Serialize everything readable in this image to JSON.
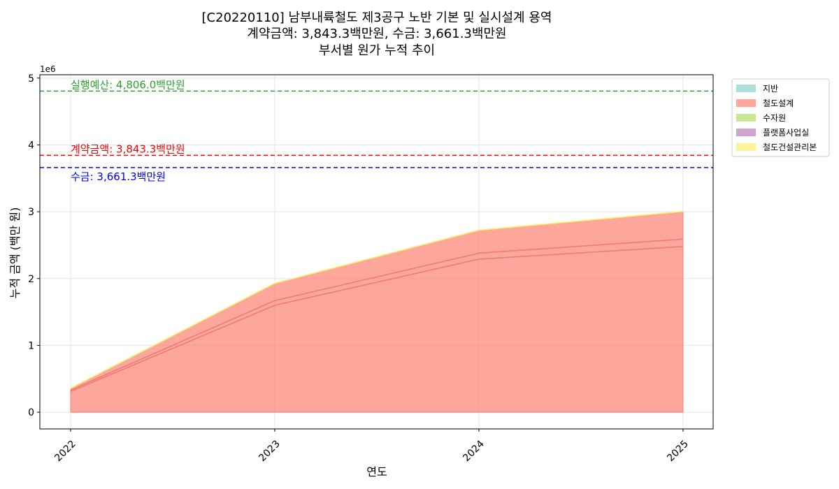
{
  "chart_data": {
    "type": "area",
    "title": [
      "[C20220110] 남부내륙철도 제3공구 노반 기본 및 실시설계 용역",
      "계약금액: 3,843.3백만원, 수금: 3,661.3백만원",
      "부서별 원가 누적 추이"
    ],
    "xlabel": "연도",
    "ylabel": "누적 금액 (백만 원)",
    "y_scale_label": "1e6",
    "x": [
      "2022",
      "2023",
      "2024",
      "2025"
    ],
    "ylim": [
      -250000,
      5050000
    ],
    "yticks": [
      0,
      1000000,
      2000000,
      3000000,
      4000000,
      5000000
    ],
    "ytick_labels": [
      "0",
      "1",
      "2",
      "3",
      "4",
      "5"
    ],
    "grid": true,
    "legend_position": "outside upper right",
    "stacked": true,
    "series": [
      {
        "name": "지반",
        "color": "#8dd3c7",
        "values": [
          0,
          0,
          0,
          0
        ]
      },
      {
        "name": "철도설계",
        "color": "#fb8072",
        "values": [
          355000,
          1925000,
          2720000,
          3000000
        ]
      },
      {
        "name": "수자원",
        "color": "#b3de69",
        "values": [
          0,
          0,
          0,
          0
        ]
      },
      {
        "name": "플랫폼사업실",
        "color": "#bc80bd",
        "values": [
          0,
          0,
          0,
          0
        ]
      },
      {
        "name": "철도건설관리본",
        "color": "#ffed6f",
        "values": [
          8000,
          8000,
          8000,
          8000
        ]
      }
    ],
    "inner_lines": [
      {
        "values": [
          330000,
          1670000,
          2380000,
          2590000
        ]
      },
      {
        "values": [
          310000,
          1600000,
          2290000,
          2480000
        ]
      }
    ],
    "reference_lines": [
      {
        "label": "실행예산: 4,806.0백만원",
        "value": 4806000,
        "color": "#2ca02c"
      },
      {
        "label": "계약금액: 3,843.3백만원",
        "value": 3843300,
        "color": "#ff0000"
      },
      {
        "label": "수금: 3,661.3백만원",
        "value": 3661300,
        "color": "#0000ff"
      }
    ]
  }
}
